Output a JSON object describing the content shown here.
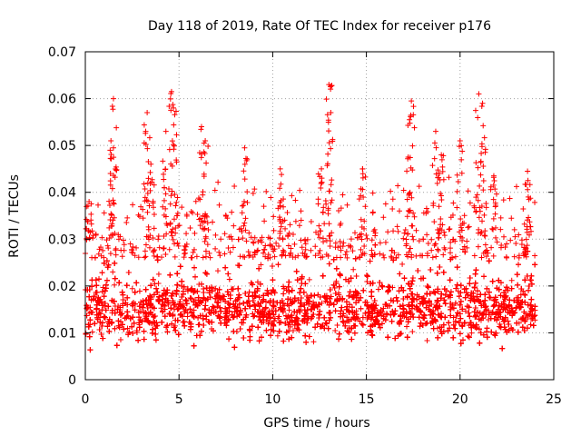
{
  "chart_data": {
    "type": "scatter",
    "title": "Day 118 of 2019, Rate Of TEC Index for receiver p176",
    "xlabel": "GPS time / hours",
    "ylabel": "ROTI / TECUs",
    "xlim": [
      0,
      25
    ],
    "ylim": [
      0,
      0.07
    ],
    "xticks": [
      0,
      5,
      10,
      15,
      20,
      25
    ],
    "xtick_labels": [
      "0",
      "5",
      "10",
      "15",
      "20",
      "25"
    ],
    "yticks": [
      0,
      0.01,
      0.02,
      0.03,
      0.04,
      0.05,
      0.06,
      0.07
    ],
    "ytick_labels": [
      "0",
      "0.01",
      "0.02",
      "0.03",
      "0.04",
      "0.05",
      "0.06",
      "0.07"
    ],
    "grid": true,
    "marker": "+",
    "series_color": "#ff0000",
    "data_range": {
      "x_min": 0,
      "x_max": 24,
      "y_min": 0.004,
      "y_max": 0.063
    },
    "dense_band": {
      "y_low": 0.006,
      "y_high": 0.028,
      "median": 0.015
    },
    "peaks": [
      {
        "x": 0.2,
        "y": 0.038
      },
      {
        "x": 1.5,
        "y": 0.06
      },
      {
        "x": 1.5,
        "y": 0.0495
      },
      {
        "x": 3.3,
        "y": 0.057
      },
      {
        "x": 3.5,
        "y": 0.046
      },
      {
        "x": 4.3,
        "y": 0.053
      },
      {
        "x": 4.6,
        "y": 0.0615
      },
      {
        "x": 4.7,
        "y": 0.058
      },
      {
        "x": 6.2,
        "y": 0.054
      },
      {
        "x": 6.4,
        "y": 0.051
      },
      {
        "x": 8.5,
        "y": 0.0495
      },
      {
        "x": 10.4,
        "y": 0.045
      },
      {
        "x": 12.6,
        "y": 0.045
      },
      {
        "x": 13.0,
        "y": 0.063
      },
      {
        "x": 13.1,
        "y": 0.057
      },
      {
        "x": 14.8,
        "y": 0.045
      },
      {
        "x": 17.4,
        "y": 0.0595
      },
      {
        "x": 17.3,
        "y": 0.0555
      },
      {
        "x": 18.7,
        "y": 0.053
      },
      {
        "x": 19.0,
        "y": 0.048
      },
      {
        "x": 20.0,
        "y": 0.051
      },
      {
        "x": 21.0,
        "y": 0.061
      },
      {
        "x": 21.2,
        "y": 0.059
      },
      {
        "x": 21.8,
        "y": 0.0435
      },
      {
        "x": 23.6,
        "y": 0.0445
      }
    ]
  }
}
